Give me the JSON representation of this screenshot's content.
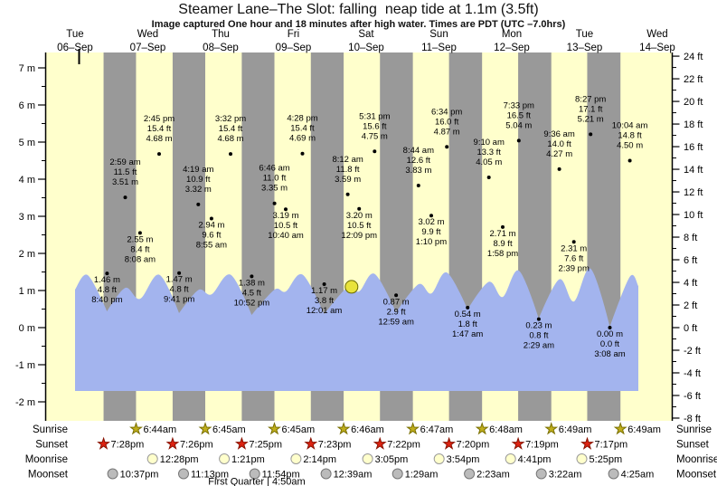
{
  "title": "Steamer Lane–The Slot: falling  neap tide at 1.1m (3.5ft)",
  "subtitle": "Image captured One hour and 18 minutes after high water. Times are PDT (UTC –7.0hrs)",
  "chart_data": {
    "type": "area",
    "days": [
      {
        "name": "Tue",
        "date": "06–Sep"
      },
      {
        "name": "Wed",
        "date": "07–Sep"
      },
      {
        "name": "Thu",
        "date": "08–Sep"
      },
      {
        "name": "Fri",
        "date": "09–Sep"
      },
      {
        "name": "Sat",
        "date": "10–Sep"
      },
      {
        "name": "Sun",
        "date": "11–Sep"
      },
      {
        "name": "Mon",
        "date": "12–Sep"
      },
      {
        "name": "Tue",
        "date": "13–Sep"
      },
      {
        "name": "Wed",
        "date": "14–Sep"
      }
    ],
    "y_axis_left": {
      "unit": "m",
      "min": -2,
      "max": 7,
      "major_step": 1,
      "minor_step": 0.5
    },
    "y_axis_right": {
      "unit": "ft",
      "min": -8,
      "max": 24,
      "major_step": 2,
      "minor_step": 1
    },
    "tide_events": [
      {
        "day": 0,
        "time": "8:40 pm",
        "ft": "4.8",
        "m": "1.46",
        "type": "low"
      },
      {
        "day": 1,
        "time": "2:59 am",
        "ft": "11.5",
        "m": "3.51",
        "type": "high"
      },
      {
        "day": 1,
        "time": "8:08 am",
        "ft": "8.4",
        "m": "2.55",
        "type": "low"
      },
      {
        "day": 1,
        "time": "2:45 pm",
        "ft": "15.4",
        "m": "4.68",
        "type": "high"
      },
      {
        "day": 1,
        "time": "9:41 pm",
        "ft": "4.8",
        "m": "1.47",
        "type": "low"
      },
      {
        "day": 2,
        "time": "4:19 am",
        "ft": "10.9",
        "m": "3.32",
        "type": "high"
      },
      {
        "day": 2,
        "time": "8:55 am",
        "ft": "9.6",
        "m": "2.94",
        "type": "low"
      },
      {
        "day": 2,
        "time": "3:32 pm",
        "ft": "15.4",
        "m": "4.68",
        "type": "high"
      },
      {
        "day": 2,
        "time": "10:52 pm",
        "ft": "4.5",
        "m": "1.38",
        "type": "low"
      },
      {
        "day": 3,
        "time": "6:46 am",
        "ft": "11.0",
        "m": "3.35",
        "type": "high"
      },
      {
        "day": 3,
        "time": "10:40 am",
        "ft": "10.5",
        "m": "3.19",
        "type": "low"
      },
      {
        "day": 3,
        "time": "4:28 pm",
        "ft": "15.4",
        "m": "4.69",
        "type": "high"
      },
      {
        "day": 4,
        "time": "12:01 am",
        "ft": "3.8",
        "m": "1.17",
        "type": "low"
      },
      {
        "day": 4,
        "time": "8:12 am",
        "ft": "11.8",
        "m": "3.59",
        "type": "high"
      },
      {
        "day": 4,
        "time": "12:09 pm",
        "ft": "10.5",
        "m": "3.20",
        "type": "low"
      },
      {
        "day": 4,
        "time": "5:31 pm",
        "ft": "15.6",
        "m": "4.75",
        "type": "high"
      },
      {
        "day": 5,
        "time": "12:59 am",
        "ft": "2.9",
        "m": "0.87",
        "type": "low"
      },
      {
        "day": 5,
        "time": "8:44 am",
        "ft": "12.6",
        "m": "3.83",
        "type": "high"
      },
      {
        "day": 5,
        "time": "1:10 pm",
        "ft": "9.9",
        "m": "3.02",
        "type": "low"
      },
      {
        "day": 5,
        "time": "6:34 pm",
        "ft": "16.0",
        "m": "4.87",
        "type": "high"
      },
      {
        "day": 6,
        "time": "1:47 am",
        "ft": "1.8",
        "m": "0.54",
        "type": "low"
      },
      {
        "day": 6,
        "time": "9:10 am",
        "ft": "13.3",
        "m": "4.05",
        "type": "high"
      },
      {
        "day": 6,
        "time": "1:58 pm",
        "ft": "8.9",
        "m": "2.71",
        "type": "low"
      },
      {
        "day": 6,
        "time": "7:33 pm",
        "ft": "16.5",
        "m": "5.04",
        "type": "high"
      },
      {
        "day": 7,
        "time": "2:29 am",
        "ft": "0.8",
        "m": "0.23",
        "type": "low"
      },
      {
        "day": 7,
        "time": "9:36 am",
        "ft": "14.0",
        "m": "4.27",
        "type": "high"
      },
      {
        "day": 7,
        "time": "2:39 pm",
        "ft": "7.6",
        "m": "2.31",
        "type": "low"
      },
      {
        "day": 7,
        "time": "8:27 pm",
        "ft": "17.1",
        "m": "5.21",
        "type": "high"
      },
      {
        "day": 8,
        "time": "3:08 am",
        "ft": "0.0",
        "m": "0.00",
        "type": "low"
      },
      {
        "day": 8,
        "time": "10:04 am",
        "ft": "14.8",
        "m": "4.50",
        "type": "high"
      }
    ],
    "current_marker": {
      "day": 4,
      "hour": 9.5,
      "height_m": 1.1,
      "height_ft": 3.5
    },
    "sun_moon": {
      "sunrise": [
        {
          "day": 1,
          "time": "6:44am"
        },
        {
          "day": 2,
          "time": "6:45am"
        },
        {
          "day": 3,
          "time": "6:45am"
        },
        {
          "day": 4,
          "time": "6:46am"
        },
        {
          "day": 5,
          "time": "6:47am"
        },
        {
          "day": 6,
          "time": "6:48am"
        },
        {
          "day": 7,
          "time": "6:49am"
        },
        {
          "day": 8,
          "time": "6:49am"
        }
      ],
      "sunset": [
        {
          "day": 0,
          "time": "7:28pm"
        },
        {
          "day": 1,
          "time": "7:26pm"
        },
        {
          "day": 2,
          "time": "7:25pm"
        },
        {
          "day": 3,
          "time": "7:23pm"
        },
        {
          "day": 4,
          "time": "7:22pm"
        },
        {
          "day": 5,
          "time": "7:20pm"
        },
        {
          "day": 6,
          "time": "7:19pm"
        },
        {
          "day": 7,
          "time": "7:17pm"
        }
      ],
      "moonrise": [
        {
          "day": 1,
          "time": "12:28pm"
        },
        {
          "day": 2,
          "time": "1:21pm"
        },
        {
          "day": 3,
          "time": "2:14pm"
        },
        {
          "day": 4,
          "time": "3:05pm"
        },
        {
          "day": 5,
          "time": "3:54pm"
        },
        {
          "day": 6,
          "time": "4:41pm"
        },
        {
          "day": 7,
          "time": "5:25pm"
        }
      ],
      "moonset": [
        {
          "day": 0,
          "time": "10:37pm"
        },
        {
          "day": 1,
          "time": "11:13pm"
        },
        {
          "day": 2,
          "time": "11:54pm"
        },
        {
          "day": 4,
          "time": "12:39am"
        },
        {
          "day": 5,
          "time": "1:29am"
        },
        {
          "day": 6,
          "time": "2:23am"
        },
        {
          "day": 7,
          "time": "3:22am"
        },
        {
          "day": 8,
          "time": "4:25am"
        }
      ]
    },
    "moon_phase": "First Quarter | 4:50am",
    "side_labels": [
      "Sunrise",
      "Sunset",
      "Moonrise",
      "Moonset"
    ],
    "colors": {
      "band_day": "#ffffcc",
      "band_night": "#999999",
      "water": "#a3b4ee",
      "day_label_red": "#ee2222",
      "sunrise_star": "#c0ae1c",
      "sunrise_star_edge": "#7a7000",
      "sunset_star": "#dd2211",
      "sunset_star_edge": "#881100",
      "moonrise_fill": "#ffffcc",
      "moonrise_edge": "#999999",
      "moonset_fill": "#bbbbbb",
      "moonset_edge": "#777777",
      "current_marker_fill": "#e8e33c",
      "current_marker_edge": "#6b6b00"
    }
  }
}
